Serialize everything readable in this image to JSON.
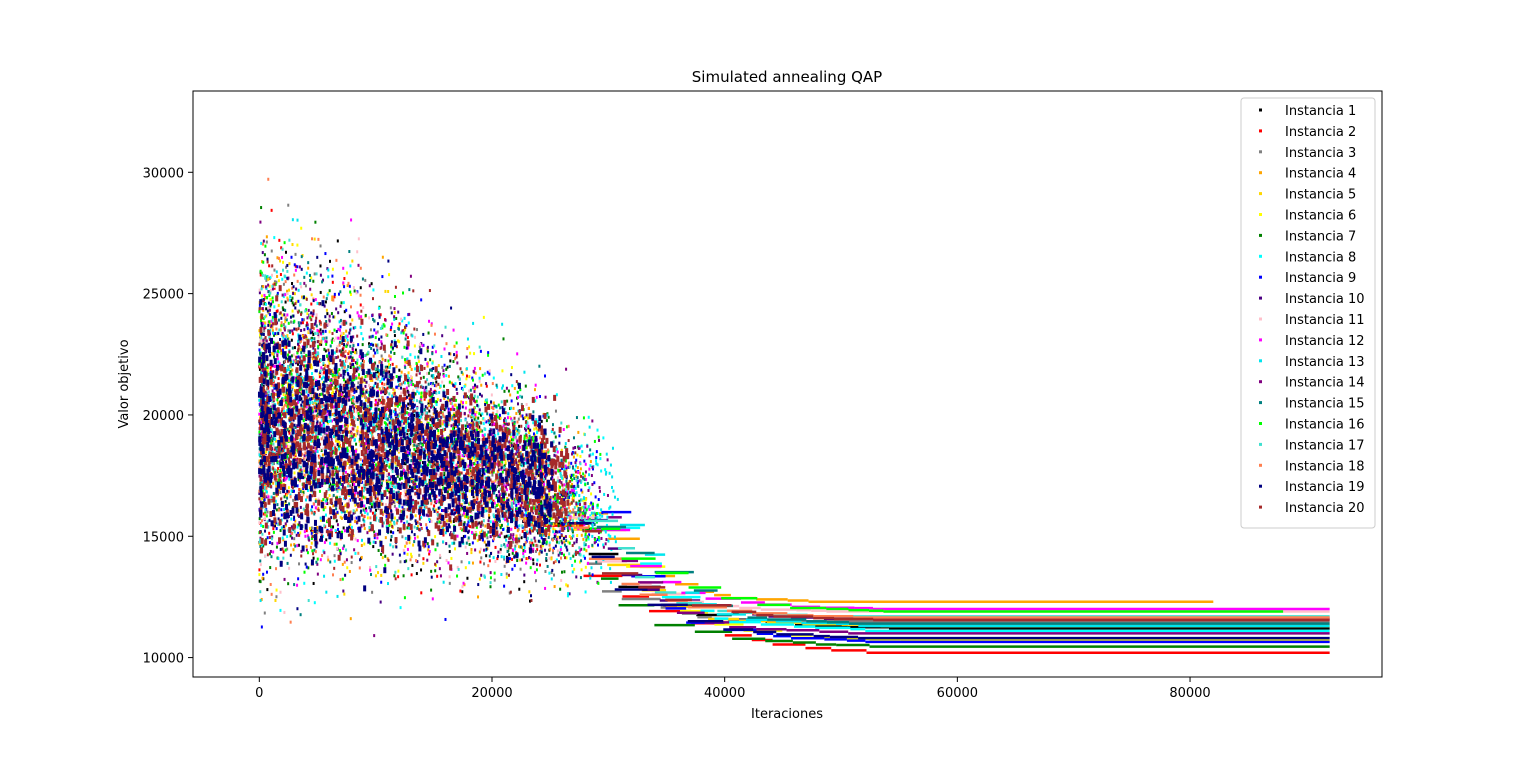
{
  "chart_data": {
    "type": "scatter",
    "title": "Simulated annealing QAP",
    "xlabel": "Iteraciones",
    "ylabel": "Valor objetivo",
    "xlim": [
      -5700,
      96500
    ],
    "ylim": [
      9200,
      33350
    ],
    "xticks": [
      0,
      20000,
      40000,
      60000,
      80000
    ],
    "xtick_labels": [
      "0",
      "20000",
      "40000",
      "60000",
      "80000"
    ],
    "yticks": [
      10000,
      15000,
      20000,
      25000,
      30000
    ],
    "ytick_labels": [
      "10000",
      "15000",
      "20000",
      "25000",
      "30000"
    ],
    "grid": false,
    "legend_position": "top-right",
    "point_seed": 12345,
    "series": [
      {
        "name": "Instancia 1",
        "color": "#000000",
        "phase1_end": 25000,
        "final_value": 11200,
        "end_x": 92000
      },
      {
        "name": "Instancia 2",
        "color": "#ff0000",
        "phase1_end": 24500,
        "final_value": 10200,
        "end_x": 92000
      },
      {
        "name": "Instancia 3",
        "color": "#808080",
        "phase1_end": 26000,
        "final_value": 11500,
        "end_x": 92000
      },
      {
        "name": "Instancia 4",
        "color": "#ffa500",
        "phase1_end": 28500,
        "final_value": 12300,
        "end_x": 82000
      },
      {
        "name": "Instancia 5",
        "color": "#ffd700",
        "phase1_end": 27000,
        "final_value": 11300,
        "end_x": 92000
      },
      {
        "name": "Instancia 6",
        "color": "#ffff00",
        "phase1_end": 29000,
        "final_value": 10700,
        "end_x": 92000
      },
      {
        "name": "Instancia 7",
        "color": "#008000",
        "phase1_end": 28000,
        "final_value": 10450,
        "end_x": 92000
      },
      {
        "name": "Instancia 8",
        "color": "#00ffff",
        "phase1_end": 30500,
        "final_value": 11100,
        "end_x": 92000
      },
      {
        "name": "Instancia 9",
        "color": "#0000ff",
        "phase1_end": 29500,
        "final_value": 10650,
        "end_x": 92000
      },
      {
        "name": "Instancia 10",
        "color": "#4b0082",
        "phase1_end": 27500,
        "final_value": 11600,
        "end_x": 92000
      },
      {
        "name": "Instancia 11",
        "color": "#ffc0cb",
        "phase1_end": 26500,
        "final_value": 11900,
        "end_x": 92000
      },
      {
        "name": "Instancia 12",
        "color": "#ff00ff",
        "phase1_end": 28500,
        "final_value": 12000,
        "end_x": 92000
      },
      {
        "name": "Instancia 13",
        "color": "#00e5ee",
        "phase1_end": 31000,
        "final_value": 11300,
        "end_x": 92000
      },
      {
        "name": "Instancia 14",
        "color": "#800080",
        "phase1_end": 30000,
        "final_value": 11000,
        "end_x": 92000
      },
      {
        "name": "Instancia 15",
        "color": "#008080",
        "phase1_end": 29000,
        "final_value": 11400,
        "end_x": 92000
      },
      {
        "name": "Instancia 16",
        "color": "#00ff00",
        "phase1_end": 29500,
        "final_value": 11900,
        "end_x": 88000
      },
      {
        "name": "Instancia 17",
        "color": "#40e0d0",
        "phase1_end": 28000,
        "final_value": 11700,
        "end_x": 92000
      },
      {
        "name": "Instancia 18",
        "color": "#ff7f50",
        "phase1_end": 27000,
        "final_value": 11650,
        "end_x": 92000
      },
      {
        "name": "Instancia 19",
        "color": "#000080",
        "phase1_end": 26500,
        "final_value": 10800,
        "end_x": 92000
      },
      {
        "name": "Instancia 20",
        "color": "#a52a2a",
        "phase1_end": 28000,
        "final_value": 11550,
        "end_x": 92000
      }
    ]
  }
}
